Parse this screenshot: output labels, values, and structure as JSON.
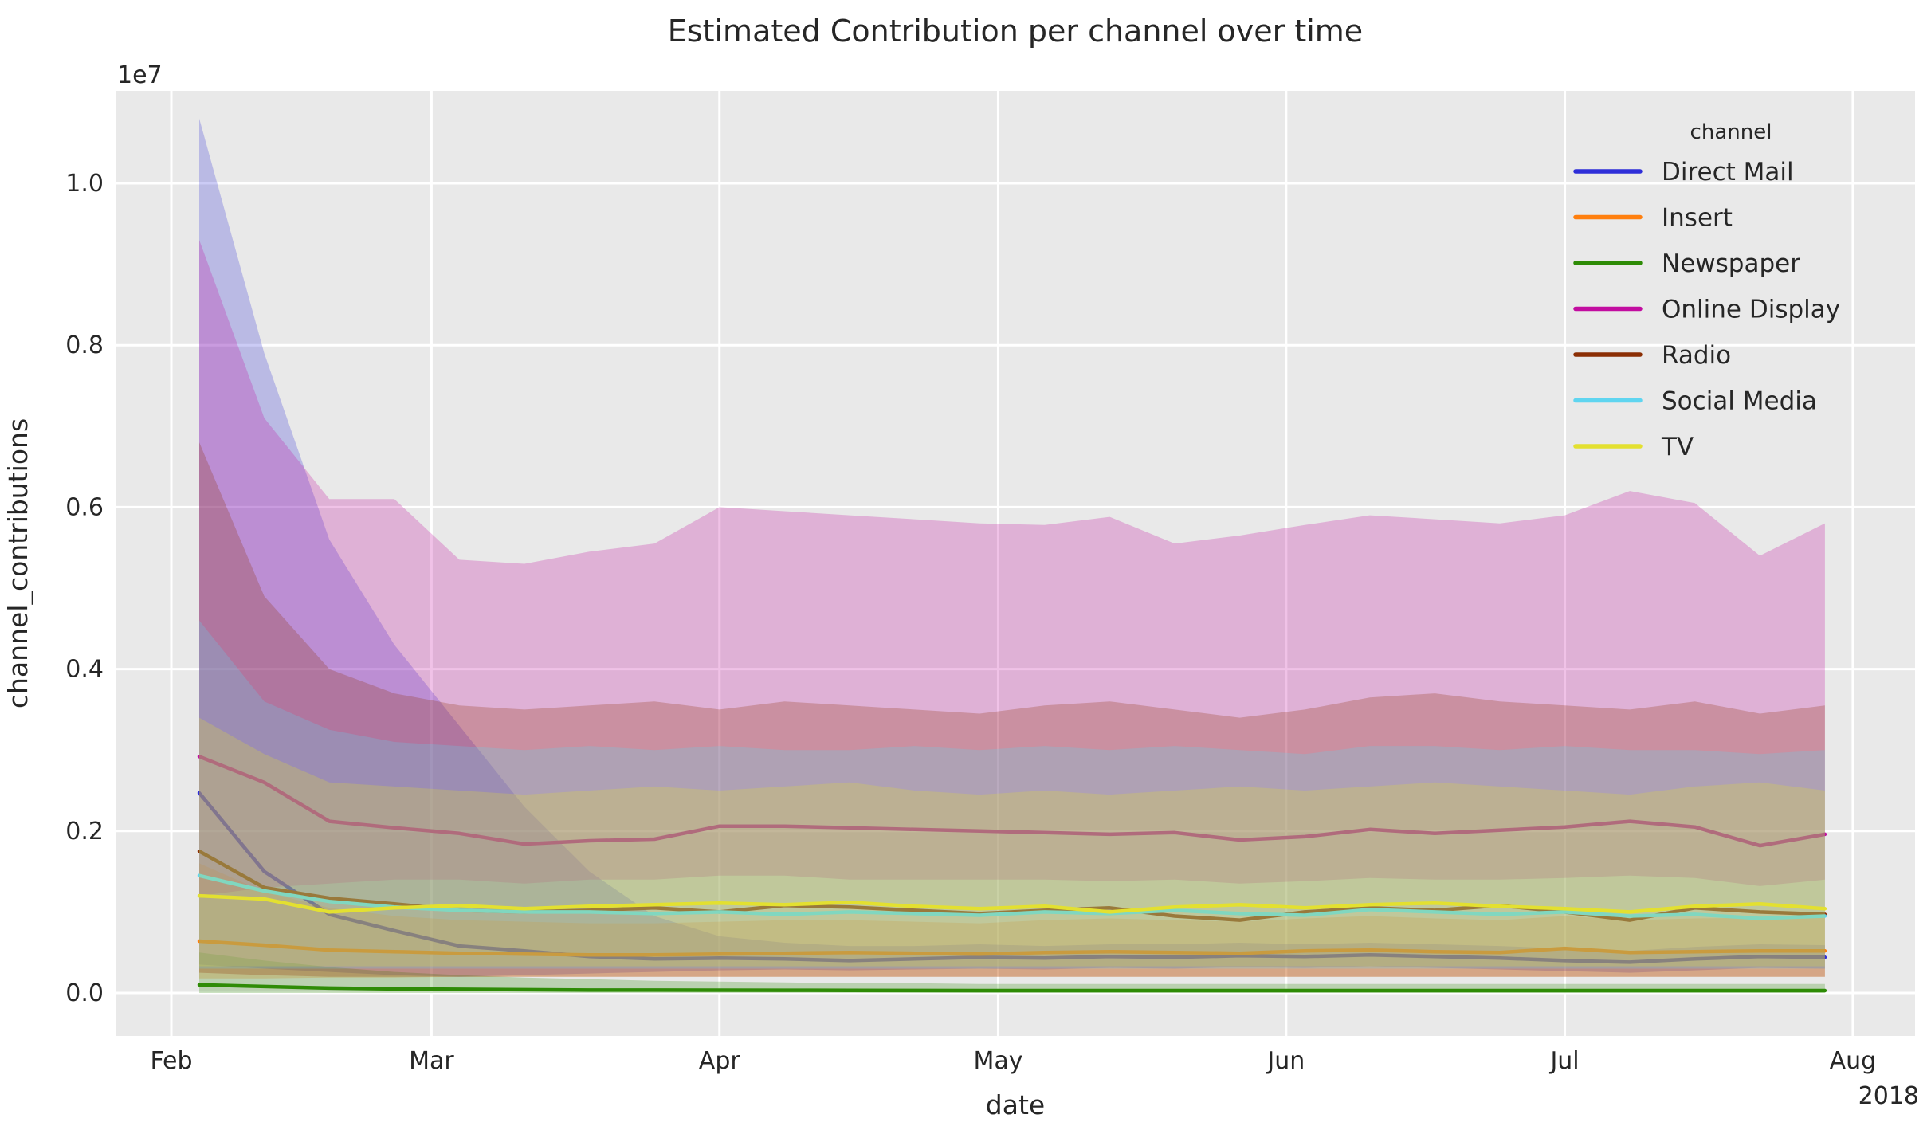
{
  "chart_data": {
    "type": "line",
    "title": "Estimated Contribution per channel over time",
    "xlabel": "date",
    "ylabel": "channel_contributions",
    "y_offset_label": "1e7",
    "x_year_label": "2018",
    "legend_title": "channel",
    "legend_position": "upper right",
    "grid": true,
    "plot_background": "#e9e9e9",
    "grid_color": "#ffffff",
    "text_color": "#262626",
    "band_opacity": 0.25,
    "value_unit": "millions (1e6); y axis displayed with 1e7 offset",
    "x_tick_labels": [
      "Feb",
      "Mar",
      "Apr",
      "May",
      "Jun",
      "Jul",
      "Aug"
    ],
    "x_tick_days": [
      0,
      28,
      59,
      89,
      120,
      150,
      181
    ],
    "y_tick_labels": [
      "0.0",
      "0.2",
      "0.4",
      "0.6",
      "0.8",
      "1.0"
    ],
    "y_ticks_millions": [
      0,
      2,
      4,
      6,
      8,
      10
    ],
    "ylim_millions": [
      -0.53,
      11.14
    ],
    "x_days_from_feb1": [
      3,
      10,
      17,
      24,
      31,
      38,
      45,
      52,
      59,
      66,
      73,
      80,
      87,
      94,
      101,
      108,
      115,
      122,
      129,
      136,
      143,
      150,
      157,
      164,
      171,
      178
    ],
    "series": [
      {
        "name": "Direct Mail",
        "color": "#2e2ed8",
        "values": [
          2.47,
          1.5,
          0.97,
          0.77,
          0.58,
          0.52,
          0.45,
          0.42,
          0.43,
          0.42,
          0.4,
          0.42,
          0.44,
          0.43,
          0.45,
          0.44,
          0.46,
          0.45,
          0.47,
          0.45,
          0.43,
          0.4,
          0.38,
          0.42,
          0.45,
          0.44
        ],
        "upper": [
          10.8,
          7.9,
          5.6,
          4.3,
          3.3,
          2.3,
          1.5,
          0.95,
          0.7,
          0.62,
          0.58,
          0.58,
          0.6,
          0.58,
          0.6,
          0.6,
          0.62,
          0.6,
          0.62,
          0.6,
          0.58,
          0.55,
          0.52,
          0.57,
          0.6,
          0.59
        ],
        "lower": [
          0.35,
          0.3,
          0.26,
          0.22,
          0.2,
          0.22,
          0.24,
          0.26,
          0.28,
          0.29,
          0.28,
          0.29,
          0.3,
          0.29,
          0.31,
          0.3,
          0.32,
          0.31,
          0.33,
          0.31,
          0.29,
          0.27,
          0.25,
          0.28,
          0.31,
          0.3
        ]
      },
      {
        "name": "Insert",
        "color": "#ff7f0e",
        "values": [
          0.64,
          0.59,
          0.53,
          0.51,
          0.49,
          0.48,
          0.47,
          0.47,
          0.48,
          0.49,
          0.5,
          0.49,
          0.48,
          0.5,
          0.51,
          0.5,
          0.49,
          0.52,
          0.53,
          0.51,
          0.5,
          0.55,
          0.5,
          0.51,
          0.52,
          0.52
        ],
        "upper": [
          1.6,
          1.25,
          1.05,
          0.95,
          0.9,
          0.88,
          0.86,
          0.86,
          0.88,
          0.9,
          0.9,
          0.88,
          0.86,
          0.9,
          0.92,
          0.9,
          0.88,
          0.92,
          0.95,
          0.92,
          0.9,
          0.95,
          0.9,
          0.92,
          0.93,
          0.93
        ],
        "lower": [
          0.18,
          0.18,
          0.19,
          0.19,
          0.2,
          0.2,
          0.2,
          0.2,
          0.2,
          0.2,
          0.2,
          0.2,
          0.2,
          0.2,
          0.2,
          0.2,
          0.2,
          0.2,
          0.2,
          0.2,
          0.2,
          0.2,
          0.2,
          0.2,
          0.2,
          0.2
        ]
      },
      {
        "name": "Newspaper",
        "color": "#2e8b06",
        "values": [
          0.1,
          0.08,
          0.06,
          0.05,
          0.045,
          0.04,
          0.035,
          0.035,
          0.034,
          0.033,
          0.032,
          0.031,
          0.03,
          0.03,
          0.03,
          0.03,
          0.03,
          0.03,
          0.03,
          0.03,
          0.03,
          0.03,
          0.03,
          0.03,
          0.03,
          0.03
        ],
        "upper": [
          0.5,
          0.4,
          0.32,
          0.26,
          0.22,
          0.19,
          0.17,
          0.15,
          0.14,
          0.13,
          0.12,
          0.12,
          0.11,
          0.11,
          0.11,
          0.11,
          0.11,
          0.11,
          0.11,
          0.11,
          0.11,
          0.11,
          0.11,
          0.11,
          0.11,
          0.11
        ],
        "lower": [
          0,
          0,
          0,
          0,
          0,
          0,
          0,
          0,
          0,
          0,
          0,
          0,
          0,
          0,
          0,
          0,
          0,
          0,
          0,
          0,
          0,
          0,
          0,
          0,
          0,
          0
        ]
      },
      {
        "name": "Online Display",
        "color": "#c20da0",
        "values": [
          2.92,
          2.6,
          2.12,
          2.04,
          1.97,
          1.84,
          1.88,
          1.9,
          2.06,
          2.06,
          2.04,
          2.02,
          2.0,
          1.98,
          1.96,
          1.98,
          1.89,
          1.93,
          2.02,
          1.97,
          2.01,
          2.05,
          2.12,
          2.05,
          1.82,
          1.96
        ],
        "upper": [
          9.3,
          7.1,
          6.1,
          6.1,
          5.35,
          5.3,
          5.45,
          5.55,
          6.0,
          5.95,
          5.9,
          5.85,
          5.8,
          5.78,
          5.88,
          5.55,
          5.65,
          5.78,
          5.9,
          5.85,
          5.8,
          5.9,
          6.2,
          6.05,
          5.4,
          5.8
        ],
        "lower": [
          1.2,
          1.3,
          1.35,
          1.4,
          1.4,
          1.35,
          1.4,
          1.4,
          1.45,
          1.45,
          1.4,
          1.4,
          1.4,
          1.4,
          1.38,
          1.4,
          1.35,
          1.38,
          1.42,
          1.4,
          1.4,
          1.42,
          1.45,
          1.42,
          1.32,
          1.4
        ]
      },
      {
        "name": "Radio",
        "color": "#8b2e04",
        "values": [
          1.75,
          1.3,
          1.17,
          1.1,
          1.02,
          1.0,
          1.02,
          1.05,
          1.0,
          1.08,
          1.06,
          1.02,
          0.98,
          1.02,
          1.05,
          0.95,
          0.9,
          1.0,
          1.05,
          1.02,
          1.08,
          1.0,
          0.9,
          1.05,
          1.0,
          0.97
        ],
        "upper": [
          6.8,
          4.9,
          4.0,
          3.7,
          3.55,
          3.5,
          3.55,
          3.6,
          3.5,
          3.6,
          3.55,
          3.5,
          3.45,
          3.55,
          3.6,
          3.5,
          3.4,
          3.5,
          3.65,
          3.7,
          3.6,
          3.55,
          3.5,
          3.6,
          3.45,
          3.55
        ],
        "lower": [
          0.25,
          0.22,
          0.2,
          0.2,
          0.2,
          0.2,
          0.2,
          0.2,
          0.2,
          0.2,
          0.2,
          0.2,
          0.2,
          0.2,
          0.2,
          0.2,
          0.2,
          0.2,
          0.2,
          0.2,
          0.2,
          0.2,
          0.2,
          0.2,
          0.2,
          0.2
        ]
      },
      {
        "name": "Social Media",
        "color": "#5fd5f0",
        "values": [
          1.45,
          1.26,
          1.13,
          1.06,
          1.02,
          1.0,
          1.0,
          0.98,
          1.0,
          0.97,
          1.0,
          0.98,
          0.96,
          1.0,
          0.98,
          1.02,
          0.98,
          0.96,
          1.03,
          1.0,
          0.97,
          1.0,
          0.95,
          0.97,
          0.92,
          0.95
        ],
        "upper": [
          4.6,
          3.6,
          3.25,
          3.1,
          3.05,
          3.0,
          3.05,
          3.0,
          3.05,
          3.0,
          3.0,
          3.05,
          3.0,
          3.05,
          3.0,
          3.05,
          3.0,
          2.95,
          3.05,
          3.05,
          3.0,
          3.05,
          3.0,
          3.0,
          2.95,
          3.0
        ],
        "lower": [
          0.3,
          0.3,
          0.3,
          0.3,
          0.3,
          0.3,
          0.3,
          0.3,
          0.3,
          0.3,
          0.3,
          0.3,
          0.3,
          0.3,
          0.3,
          0.3,
          0.3,
          0.3,
          0.3,
          0.3,
          0.3,
          0.3,
          0.3,
          0.3,
          0.3,
          0.3
        ]
      },
      {
        "name": "TV",
        "color": "#e3e030",
        "values": [
          1.2,
          1.16,
          1.0,
          1.05,
          1.08,
          1.04,
          1.07,
          1.09,
          1.11,
          1.09,
          1.12,
          1.07,
          1.04,
          1.07,
          1.0,
          1.06,
          1.09,
          1.05,
          1.09,
          1.11,
          1.07,
          1.04,
          1.0,
          1.07,
          1.1,
          1.04
        ],
        "upper": [
          3.4,
          2.95,
          2.6,
          2.55,
          2.5,
          2.45,
          2.5,
          2.55,
          2.5,
          2.55,
          2.6,
          2.5,
          2.45,
          2.5,
          2.45,
          2.5,
          2.55,
          2.5,
          2.55,
          2.6,
          2.55,
          2.5,
          2.45,
          2.55,
          2.6,
          2.5
        ],
        "lower": [
          0.33,
          0.33,
          0.33,
          0.33,
          0.33,
          0.33,
          0.33,
          0.33,
          0.33,
          0.33,
          0.33,
          0.33,
          0.33,
          0.33,
          0.33,
          0.33,
          0.33,
          0.33,
          0.33,
          0.33,
          0.33,
          0.33,
          0.33,
          0.33,
          0.33,
          0.33
        ]
      }
    ]
  }
}
